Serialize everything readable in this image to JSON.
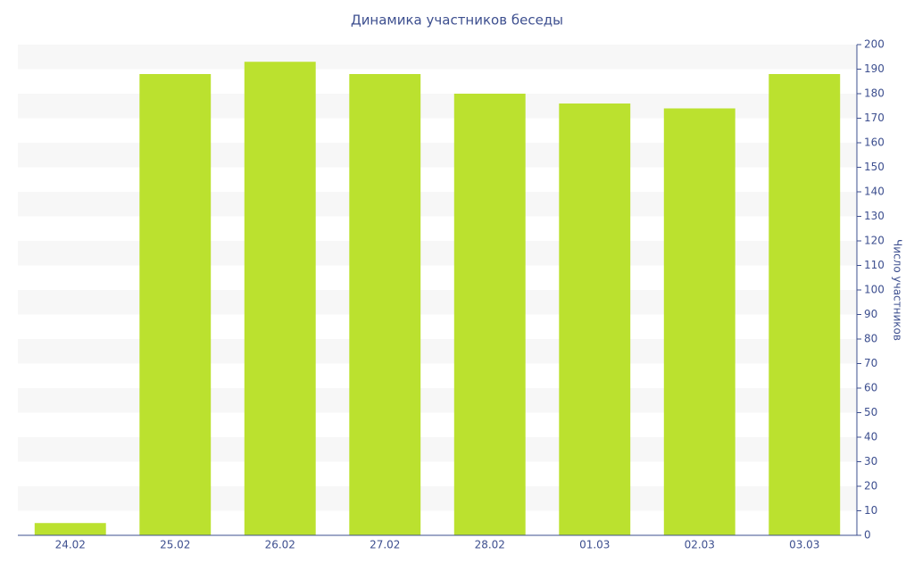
{
  "chart_data": {
    "type": "bar",
    "title": "Динамика участников беседы",
    "y_label": "Число участников",
    "categories": [
      "24.02",
      "25.02",
      "26.02",
      "27.02",
      "28.02",
      "01.03",
      "02.03",
      "03.03"
    ],
    "values": [
      5,
      188,
      193,
      188,
      180,
      176,
      174,
      188
    ],
    "color": "#bbe12f",
    "ylim": [
      0,
      200
    ],
    "yticks": [
      0,
      10,
      20,
      30,
      40,
      50,
      60,
      70,
      80,
      90,
      100,
      110,
      120,
      130,
      140,
      150,
      160,
      170,
      180,
      190,
      200
    ],
    "grid": "bands",
    "y_axis_side": "right"
  }
}
